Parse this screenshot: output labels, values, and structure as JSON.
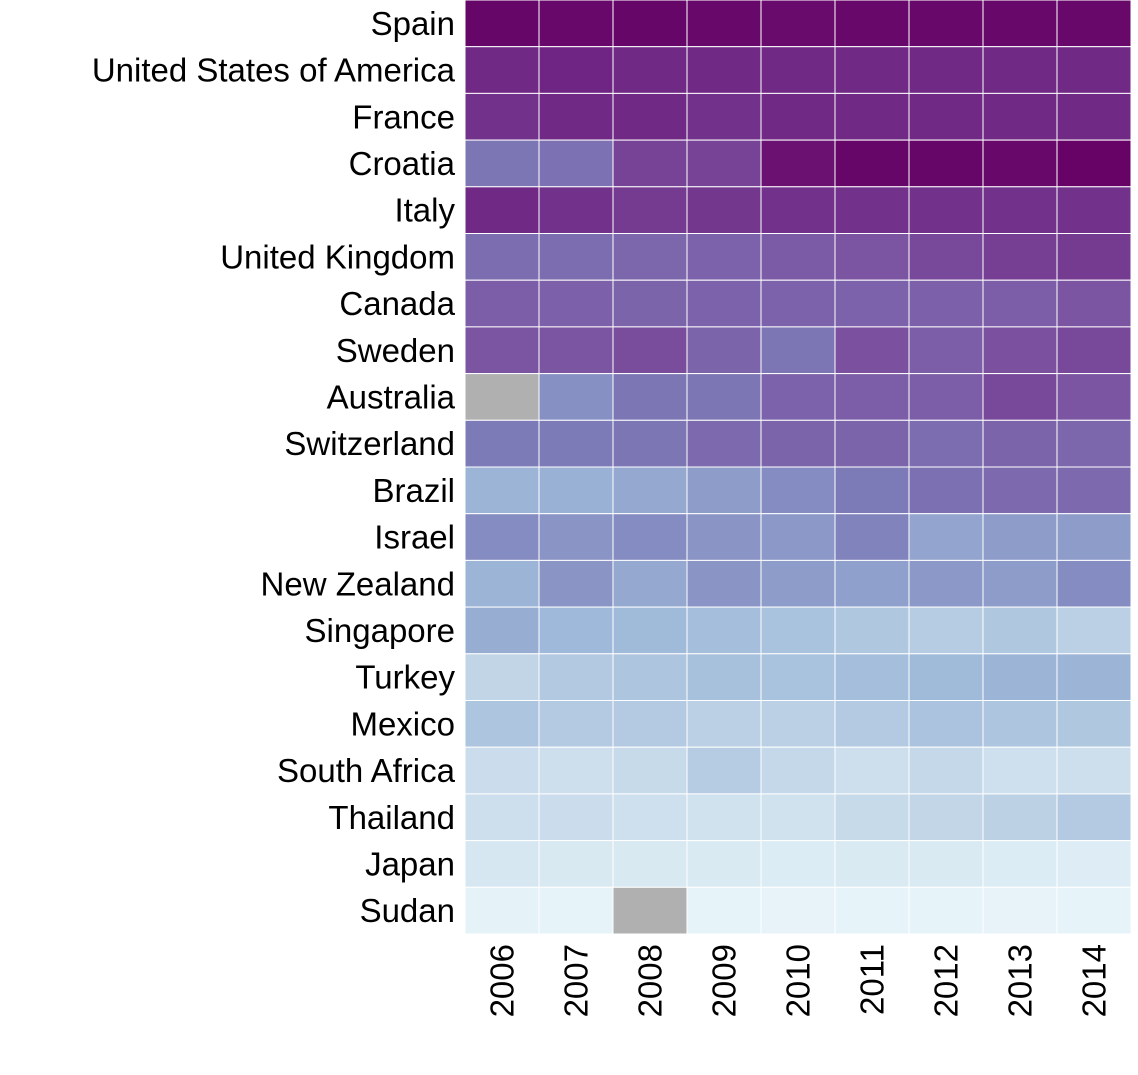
{
  "chart_data": {
    "type": "heatmap",
    "title": "",
    "xlabel": "",
    "ylabel": "",
    "columns": [
      "2006",
      "2007",
      "2008",
      "2009",
      "2010",
      "2011",
      "2012",
      "2013",
      "2014"
    ],
    "rows": [
      "Spain",
      "United States of America",
      "France",
      "Croatia",
      "Italy",
      "United Kingdom",
      "Canada",
      "Sweden",
      "Australia",
      "Switzerland",
      "Brazil",
      "Israel",
      "New Zealand",
      "Singapore",
      "Turkey",
      "Mexico",
      "South Africa",
      "Thailand",
      "Japan",
      "Sudan"
    ],
    "value_range": [
      0,
      1
    ],
    "colormap": "BuPu",
    "missing_color": "#b0b0b0",
    "grid_color": "#ffffff",
    "values": [
      [
        0.98,
        0.97,
        0.98,
        0.97,
        0.96,
        0.97,
        0.97,
        0.97,
        0.97
      ],
      [
        0.86,
        0.87,
        0.86,
        0.86,
        0.86,
        0.86,
        0.86,
        0.86,
        0.86
      ],
      [
        0.84,
        0.86,
        0.86,
        0.84,
        0.86,
        0.86,
        0.86,
        0.86,
        0.86
      ],
      [
        0.62,
        0.64,
        0.8,
        0.8,
        0.94,
        0.98,
        0.98,
        0.97,
        0.99
      ],
      [
        0.86,
        0.84,
        0.82,
        0.83,
        0.84,
        0.84,
        0.84,
        0.84,
        0.84
      ],
      [
        0.66,
        0.66,
        0.69,
        0.71,
        0.74,
        0.76,
        0.79,
        0.81,
        0.82
      ],
      [
        0.73,
        0.72,
        0.7,
        0.71,
        0.71,
        0.71,
        0.72,
        0.73,
        0.76
      ],
      [
        0.76,
        0.76,
        0.78,
        0.7,
        0.62,
        0.77,
        0.73,
        0.77,
        0.79
      ],
      [
        null,
        0.55,
        0.62,
        0.62,
        0.71,
        0.73,
        0.73,
        0.79,
        0.76
      ],
      [
        0.6,
        0.6,
        0.62,
        0.68,
        0.7,
        0.7,
        0.66,
        0.7,
        0.69
      ],
      [
        0.46,
        0.47,
        0.49,
        0.52,
        0.56,
        0.6,
        0.65,
        0.68,
        0.68
      ],
      [
        0.56,
        0.54,
        0.56,
        0.54,
        0.53,
        0.58,
        0.5,
        0.52,
        0.52
      ],
      [
        0.46,
        0.54,
        0.49,
        0.54,
        0.52,
        0.51,
        0.53,
        0.52,
        0.56
      ],
      [
        0.48,
        0.45,
        0.44,
        0.42,
        0.4,
        0.37,
        0.34,
        0.37,
        0.32
      ],
      [
        0.29,
        0.36,
        0.38,
        0.41,
        0.4,
        0.42,
        0.44,
        0.46,
        0.46
      ],
      [
        0.38,
        0.35,
        0.35,
        0.32,
        0.32,
        0.35,
        0.39,
        0.38,
        0.37
      ],
      [
        0.24,
        0.23,
        0.26,
        0.34,
        0.27,
        0.23,
        0.27,
        0.22,
        0.23
      ],
      [
        0.23,
        0.24,
        0.22,
        0.21,
        0.21,
        0.26,
        0.28,
        0.31,
        0.35
      ],
      [
        0.18,
        0.17,
        0.17,
        0.16,
        0.15,
        0.16,
        0.16,
        0.15,
        0.13
      ],
      [
        0.07,
        0.06,
        null,
        0.06,
        0.05,
        0.06,
        0.06,
        0.05,
        0.06
      ]
    ]
  }
}
